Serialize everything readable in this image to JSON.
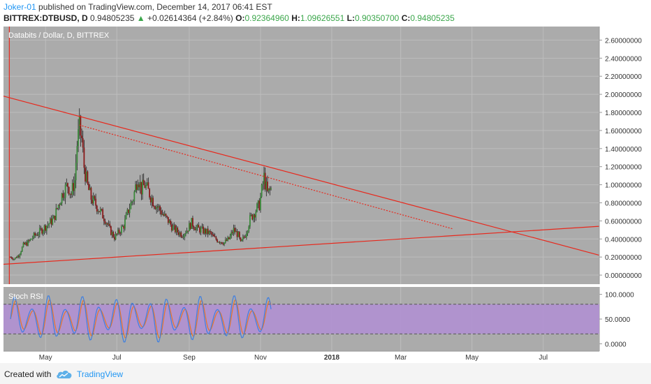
{
  "header": {
    "author": "Joker-01",
    "published_text": " published on TradingView.com, December 14, 2017 06:41 EST",
    "symbol": "BITTREX:DTBUSD, D",
    "last": "0.94805235",
    "change": "+0.02614364 (+2.84%)",
    "o_label": "O:",
    "o_value": "0.92364960",
    "h_label": "H:",
    "h_value": "1.09626551",
    "l_label": "L:",
    "l_value": "0.90350700",
    "c_label": "C:",
    "c_value": "0.94805235"
  },
  "colors": {
    "panel_bg": "#ababab",
    "stoch_band": "#b08ed4",
    "trendline": "#e8281c",
    "candle_up": "#3a8a3a",
    "candle_down": "#8b1a1a",
    "stoch_k": "#3f7fe0",
    "stoch_d": "#e8742a"
  },
  "chart_data": {
    "type": "candlestick",
    "legend": "Databits / Dollar, D, BITTREX",
    "ylim": [
      -0.1,
      2.75
    ],
    "y_ticks": [
      "0.00000000",
      "0.20000000",
      "0.40000000",
      "0.60000000",
      "0.80000000",
      "1.00000000",
      "1.20000000",
      "1.40000000",
      "1.60000000",
      "1.80000000",
      "2.00000000",
      "2.20000000",
      "2.40000000",
      "2.60000000"
    ],
    "x_ticks": [
      "May",
      "Jul",
      "Sep",
      "Nov",
      "2018",
      "Mar",
      "May",
      "Jul"
    ],
    "x_tick_days": [
      31,
      92,
      154,
      215,
      276,
      335,
      396,
      457
    ],
    "x_range_days": [
      -5,
      505
    ],
    "close_path": [
      [
        1,
        0.2
      ],
      [
        4,
        0.18
      ],
      [
        8,
        0.22
      ],
      [
        12,
        0.33
      ],
      [
        16,
        0.36
      ],
      [
        20,
        0.42
      ],
      [
        26,
        0.48
      ],
      [
        32,
        0.55
      ],
      [
        38,
        0.62
      ],
      [
        42,
        0.78
      ],
      [
        46,
        0.92
      ],
      [
        50,
        1.0
      ],
      [
        53,
        0.9
      ],
      [
        56,
        1.05
      ],
      [
        58,
        1.45
      ],
      [
        60,
        1.62
      ],
      [
        62,
        1.5
      ],
      [
        64,
        1.2
      ],
      [
        67,
        0.98
      ],
      [
        70,
        0.85
      ],
      [
        74,
        0.78
      ],
      [
        78,
        0.7
      ],
      [
        82,
        0.62
      ],
      [
        86,
        0.5
      ],
      [
        90,
        0.42
      ],
      [
        94,
        0.48
      ],
      [
        98,
        0.55
      ],
      [
        102,
        0.72
      ],
      [
        106,
        0.85
      ],
      [
        110,
        1.1
      ],
      [
        113,
        0.95
      ],
      [
        116,
        1.0
      ],
      [
        120,
        0.9
      ],
      [
        124,
        0.8
      ],
      [
        128,
        0.74
      ],
      [
        132,
        0.66
      ],
      [
        136,
        0.6
      ],
      [
        140,
        0.52
      ],
      [
        144,
        0.48
      ],
      [
        148,
        0.45
      ],
      [
        152,
        0.5
      ],
      [
        156,
        0.58
      ],
      [
        160,
        0.52
      ],
      [
        164,
        0.5
      ],
      [
        168,
        0.48
      ],
      [
        172,
        0.46
      ],
      [
        176,
        0.4
      ],
      [
        180,
        0.38
      ],
      [
        184,
        0.36
      ],
      [
        188,
        0.4
      ],
      [
        192,
        0.5
      ],
      [
        196,
        0.44
      ],
      [
        198,
        0.35
      ],
      [
        202,
        0.45
      ],
      [
        206,
        0.62
      ],
      [
        210,
        0.7
      ],
      [
        214,
        0.78
      ],
      [
        218,
        1.08
      ],
      [
        221,
        0.9
      ],
      [
        224,
        0.95
      ]
    ],
    "stoch_rsi": {
      "ylim": [
        -15,
        115
      ],
      "y_ticks": [
        "0.0000",
        "50.0000",
        "100.0000"
      ],
      "band": [
        20,
        80
      ]
    }
  }
}
